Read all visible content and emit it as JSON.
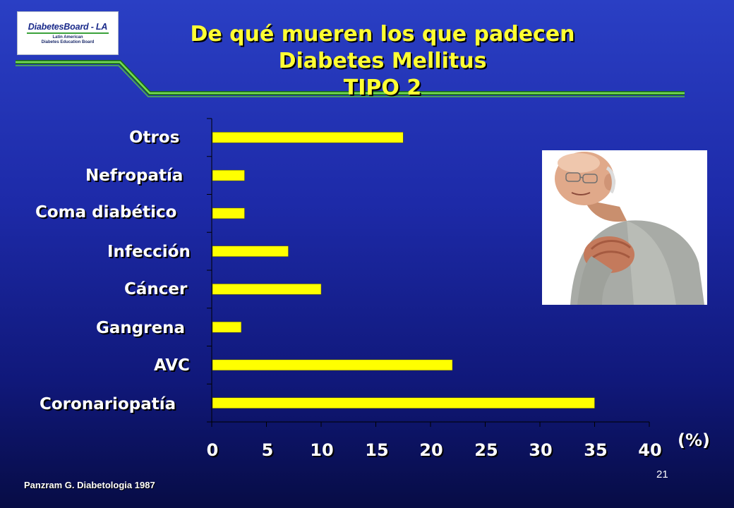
{
  "logo": {
    "main": "DiabetesBoard - LA",
    "sub_line1": "Latin American",
    "sub_line2": "Diabetes Education Board"
  },
  "title": {
    "line1": "De qué mueren los que padecen",
    "line2": "Diabetes Mellitus",
    "line3": "TIPO 2"
  },
  "chart_data": {
    "type": "bar",
    "orientation": "horizontal",
    "categories": [
      "Otros",
      "Nefropatía",
      "Coma diabético",
      "Infección",
      "Cáncer",
      "Gangrena",
      "AVC",
      "Coronariopatía"
    ],
    "values": [
      17.5,
      3,
      3,
      7,
      10,
      2.7,
      22,
      35
    ],
    "xlim": [
      0,
      40
    ],
    "xticks": [
      "0",
      "5",
      "10",
      "15",
      "20",
      "25",
      "30",
      "35",
      "40"
    ],
    "xlabel": "(%)",
    "bar_color": "#ffff00",
    "grid": false
  },
  "source": "Panzram G. Diabetologia 1987",
  "page_number": "21",
  "colors": {
    "title": "#ffff33",
    "text": "#ffffff",
    "accent_line": "#66cc44",
    "background_top": "#2a3fc4",
    "background_bottom": "#070c45"
  },
  "photo": {
    "icon": "man-chest-pain-photo"
  }
}
